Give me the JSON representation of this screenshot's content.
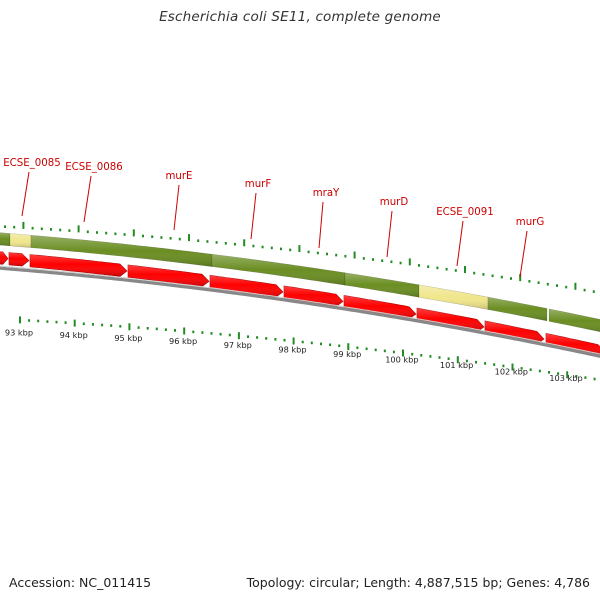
{
  "title": "Escherichia coli SE11, complete genome",
  "footer": {
    "accession": "Accession: NC_011415",
    "info": "Topology: circular; Length: 4,887,515 bp; Genes: 4,786"
  },
  "colors": {
    "gene_track": "#6b8e23",
    "gene_highlight": "#f0e68c",
    "cds_arrow": "#ff0000",
    "backbone": "#888888",
    "ticks": "#228b22",
    "gene_label": "#cc0000"
  },
  "gene_labels": [
    {
      "name": "ECSE_0085"
    },
    {
      "name": "ECSE_0086"
    },
    {
      "name": "murE"
    },
    {
      "name": "murF"
    },
    {
      "name": "mraY"
    },
    {
      "name": "murD"
    },
    {
      "name": "ECSE_0091"
    },
    {
      "name": "murG"
    }
  ],
  "scale_labels": [
    "93 kbp",
    "94 kbp",
    "95 kbp",
    "96 kbp",
    "97 kbp",
    "98 kbp",
    "99 kbp",
    "100 kbp",
    "101 kbp",
    "102 kbp",
    "103 kbp"
  ]
}
